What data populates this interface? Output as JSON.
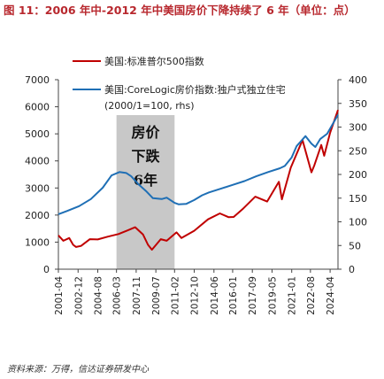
{
  "figure": {
    "title": "图 11：2006 年中-2012 年中美国房价下降持续了 6 年（单位：点）",
    "source": "资料来源：万得，信达证券研发中心"
  },
  "chart_data": {
    "type": "line",
    "legend_position": "top-center",
    "grid": false,
    "x_tick_labels": [
      "2001-04",
      "2002-12",
      "2004-08",
      "2006-03",
      "2007-11",
      "2009-07",
      "2011-02",
      "2012-10",
      "2014-06",
      "2016-01",
      "2017-09",
      "2019-05",
      "2021-01",
      "2022-08",
      "2024-04"
    ],
    "y_left": {
      "ylim": [
        0,
        7000
      ],
      "ticks": [
        0,
        1000,
        2000,
        3000,
        4000,
        5000,
        6000,
        7000
      ]
    },
    "y_right": {
      "ylim": [
        0,
        400
      ],
      "ticks": [
        0,
        50,
        100,
        150,
        200,
        250,
        300,
        350,
        400
      ]
    },
    "shaded_region": {
      "x_start": "2006-03",
      "x_end": "2011-02",
      "label_lines": [
        "房价",
        "下跌",
        "6年"
      ],
      "color": "#c8c8c8"
    },
    "series": [
      {
        "name": "美国:标准普尔500指数",
        "axis": "left",
        "color": "#c00000",
        "points": [
          [
            "2001-04",
            1250
          ],
          [
            "2001-09",
            1050
          ],
          [
            "2002-03",
            1150
          ],
          [
            "2002-07",
            900
          ],
          [
            "2002-10",
            820
          ],
          [
            "2003-03",
            860
          ],
          [
            "2003-12",
            1110
          ],
          [
            "2004-08",
            1100
          ],
          [
            "2005-06",
            1200
          ],
          [
            "2006-05",
            1300
          ],
          [
            "2007-02",
            1430
          ],
          [
            "2007-10",
            1550
          ],
          [
            "2008-06",
            1280
          ],
          [
            "2008-11",
            900
          ],
          [
            "2009-03",
            720
          ],
          [
            "2009-12",
            1110
          ],
          [
            "2010-06",
            1050
          ],
          [
            "2011-04",
            1360
          ],
          [
            "2011-09",
            1150
          ],
          [
            "2012-10",
            1420
          ],
          [
            "2013-12",
            1840
          ],
          [
            "2014-12",
            2060
          ],
          [
            "2015-09",
            1920
          ],
          [
            "2016-02",
            1930
          ],
          [
            "2016-12",
            2250
          ],
          [
            "2017-12",
            2680
          ],
          [
            "2018-12",
            2500
          ],
          [
            "2019-12",
            3230
          ],
          [
            "2020-03",
            2580
          ],
          [
            "2020-12",
            3750
          ],
          [
            "2021-12",
            4770
          ],
          [
            "2022-09",
            3580
          ],
          [
            "2022-12",
            3840
          ],
          [
            "2023-07",
            4590
          ],
          [
            "2023-10",
            4190
          ],
          [
            "2024-04",
            5040
          ],
          [
            "2024-12",
            5880
          ]
        ]
      },
      {
        "name": "美国:CoreLogic房价指数:独户式独立住宅",
        "label_note": "(2000/1=100, rhs)",
        "axis": "right",
        "color": "#1f6fb5",
        "points": [
          [
            "2001-04",
            116
          ],
          [
            "2002-01",
            123
          ],
          [
            "2003-01",
            133
          ],
          [
            "2004-01",
            148
          ],
          [
            "2005-01",
            172
          ],
          [
            "2005-10",
            198
          ],
          [
            "2006-06",
            205
          ],
          [
            "2007-01",
            203
          ],
          [
            "2007-06",
            196
          ],
          [
            "2008-01",
            180
          ],
          [
            "2008-09",
            165
          ],
          [
            "2009-04",
            150
          ],
          [
            "2010-01",
            148
          ],
          [
            "2010-06",
            151
          ],
          [
            "2011-02",
            140
          ],
          [
            "2011-06",
            137
          ],
          [
            "2012-02",
            138
          ],
          [
            "2012-10",
            146
          ],
          [
            "2013-06",
            156
          ],
          [
            "2014-01",
            162
          ],
          [
            "2015-01",
            170
          ],
          [
            "2016-01",
            178
          ],
          [
            "2017-01",
            186
          ],
          [
            "2018-01",
            196
          ],
          [
            "2019-01",
            205
          ],
          [
            "2020-01",
            213
          ],
          [
            "2020-06",
            218
          ],
          [
            "2021-01",
            236
          ],
          [
            "2021-06",
            260
          ],
          [
            "2022-03",
            281
          ],
          [
            "2022-09",
            265
          ],
          [
            "2023-01",
            258
          ],
          [
            "2023-06",
            275
          ],
          [
            "2024-01",
            286
          ],
          [
            "2024-06",
            304
          ],
          [
            "2024-12",
            326
          ]
        ]
      }
    ]
  }
}
